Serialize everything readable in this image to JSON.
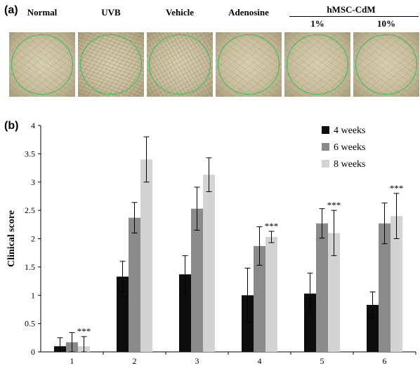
{
  "panel_a": {
    "label": "(a)",
    "columns": [
      "Normal",
      "UVB",
      "Vehicle",
      "Adenosine"
    ],
    "group_label": "hMSC-CdM",
    "group_subcolumns": [
      "1%",
      "10%"
    ],
    "ring_color": "#2fbf5a"
  },
  "panel_b": {
    "label": "(b)"
  },
  "chart_data": {
    "type": "bar",
    "categories": [
      "1",
      "2",
      "3",
      "4",
      "5",
      "6"
    ],
    "ylabel": "Clinical score",
    "xlabel": "",
    "ylim": [
      0,
      4
    ],
    "yticks": [
      "0",
      "0.5",
      "1",
      "1.5",
      "2",
      "2.5",
      "3",
      "3.5",
      "4"
    ],
    "legend_position": "top-right",
    "grid": false,
    "series": [
      {
        "name": "4 weeks",
        "color": "#0d0d0d",
        "values": [
          0.1,
          1.33,
          1.37,
          1.0,
          1.03,
          0.83
        ],
        "errors": [
          0.15,
          0.27,
          0.33,
          0.48,
          0.36,
          0.23
        ]
      },
      {
        "name": "6 weeks",
        "color": "#8a8a8a",
        "values": [
          0.17,
          2.37,
          2.53,
          1.87,
          2.27,
          2.27
        ],
        "errors": [
          0.17,
          0.27,
          0.38,
          0.34,
          0.26,
          0.36
        ]
      },
      {
        "name": "8 weeks",
        "color": "#d3d3d3",
        "values": [
          0.1,
          3.4,
          3.13,
          2.03,
          2.1,
          2.4
        ],
        "errors": [
          0.17,
          0.4,
          0.3,
          0.1,
          0.4,
          0.4
        ]
      }
    ],
    "annotations": [
      {
        "category": "1",
        "series": "8 weeks",
        "text": "***"
      },
      {
        "category": "4",
        "series": "8 weeks",
        "text": "***"
      },
      {
        "category": "5",
        "series": "8 weeks",
        "text": "***"
      },
      {
        "category": "6",
        "series": "8 weeks",
        "text": "***"
      }
    ]
  }
}
